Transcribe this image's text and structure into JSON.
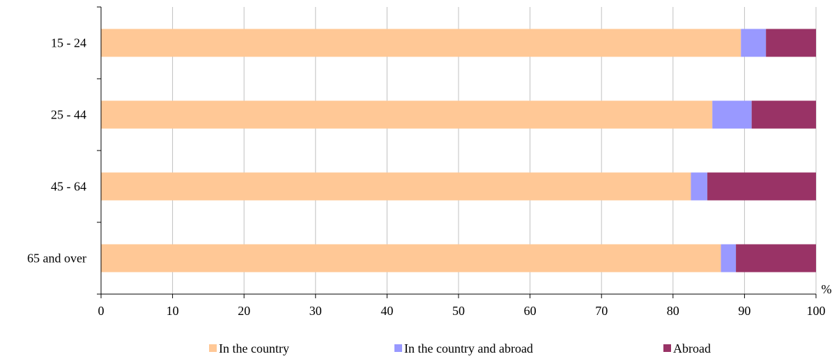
{
  "chart_data": {
    "type": "bar",
    "orientation": "horizontal",
    "stacked": true,
    "title": "",
    "xlabel": "",
    "ylabel": "",
    "x_unit": "%",
    "xlim": [
      0,
      100
    ],
    "x_ticks": [
      0,
      10,
      20,
      30,
      40,
      50,
      60,
      70,
      80,
      90,
      100
    ],
    "grid": "vertical",
    "legend_position": "bottom",
    "categories": [
      "15 - 24",
      "25 - 44",
      "45 - 64",
      "65 and over"
    ],
    "series": [
      {
        "name": "In the country",
        "color": "#FFC896",
        "values": [
          89.5,
          85.5,
          82.5,
          86.7
        ]
      },
      {
        "name": "In the country and abroad",
        "color": "#9999FF",
        "values": [
          3.5,
          5.5,
          2.3,
          2.1
        ]
      },
      {
        "name": "Abroad",
        "color": "#993366",
        "values": [
          7.0,
          9.0,
          15.2,
          11.2
        ]
      }
    ]
  }
}
